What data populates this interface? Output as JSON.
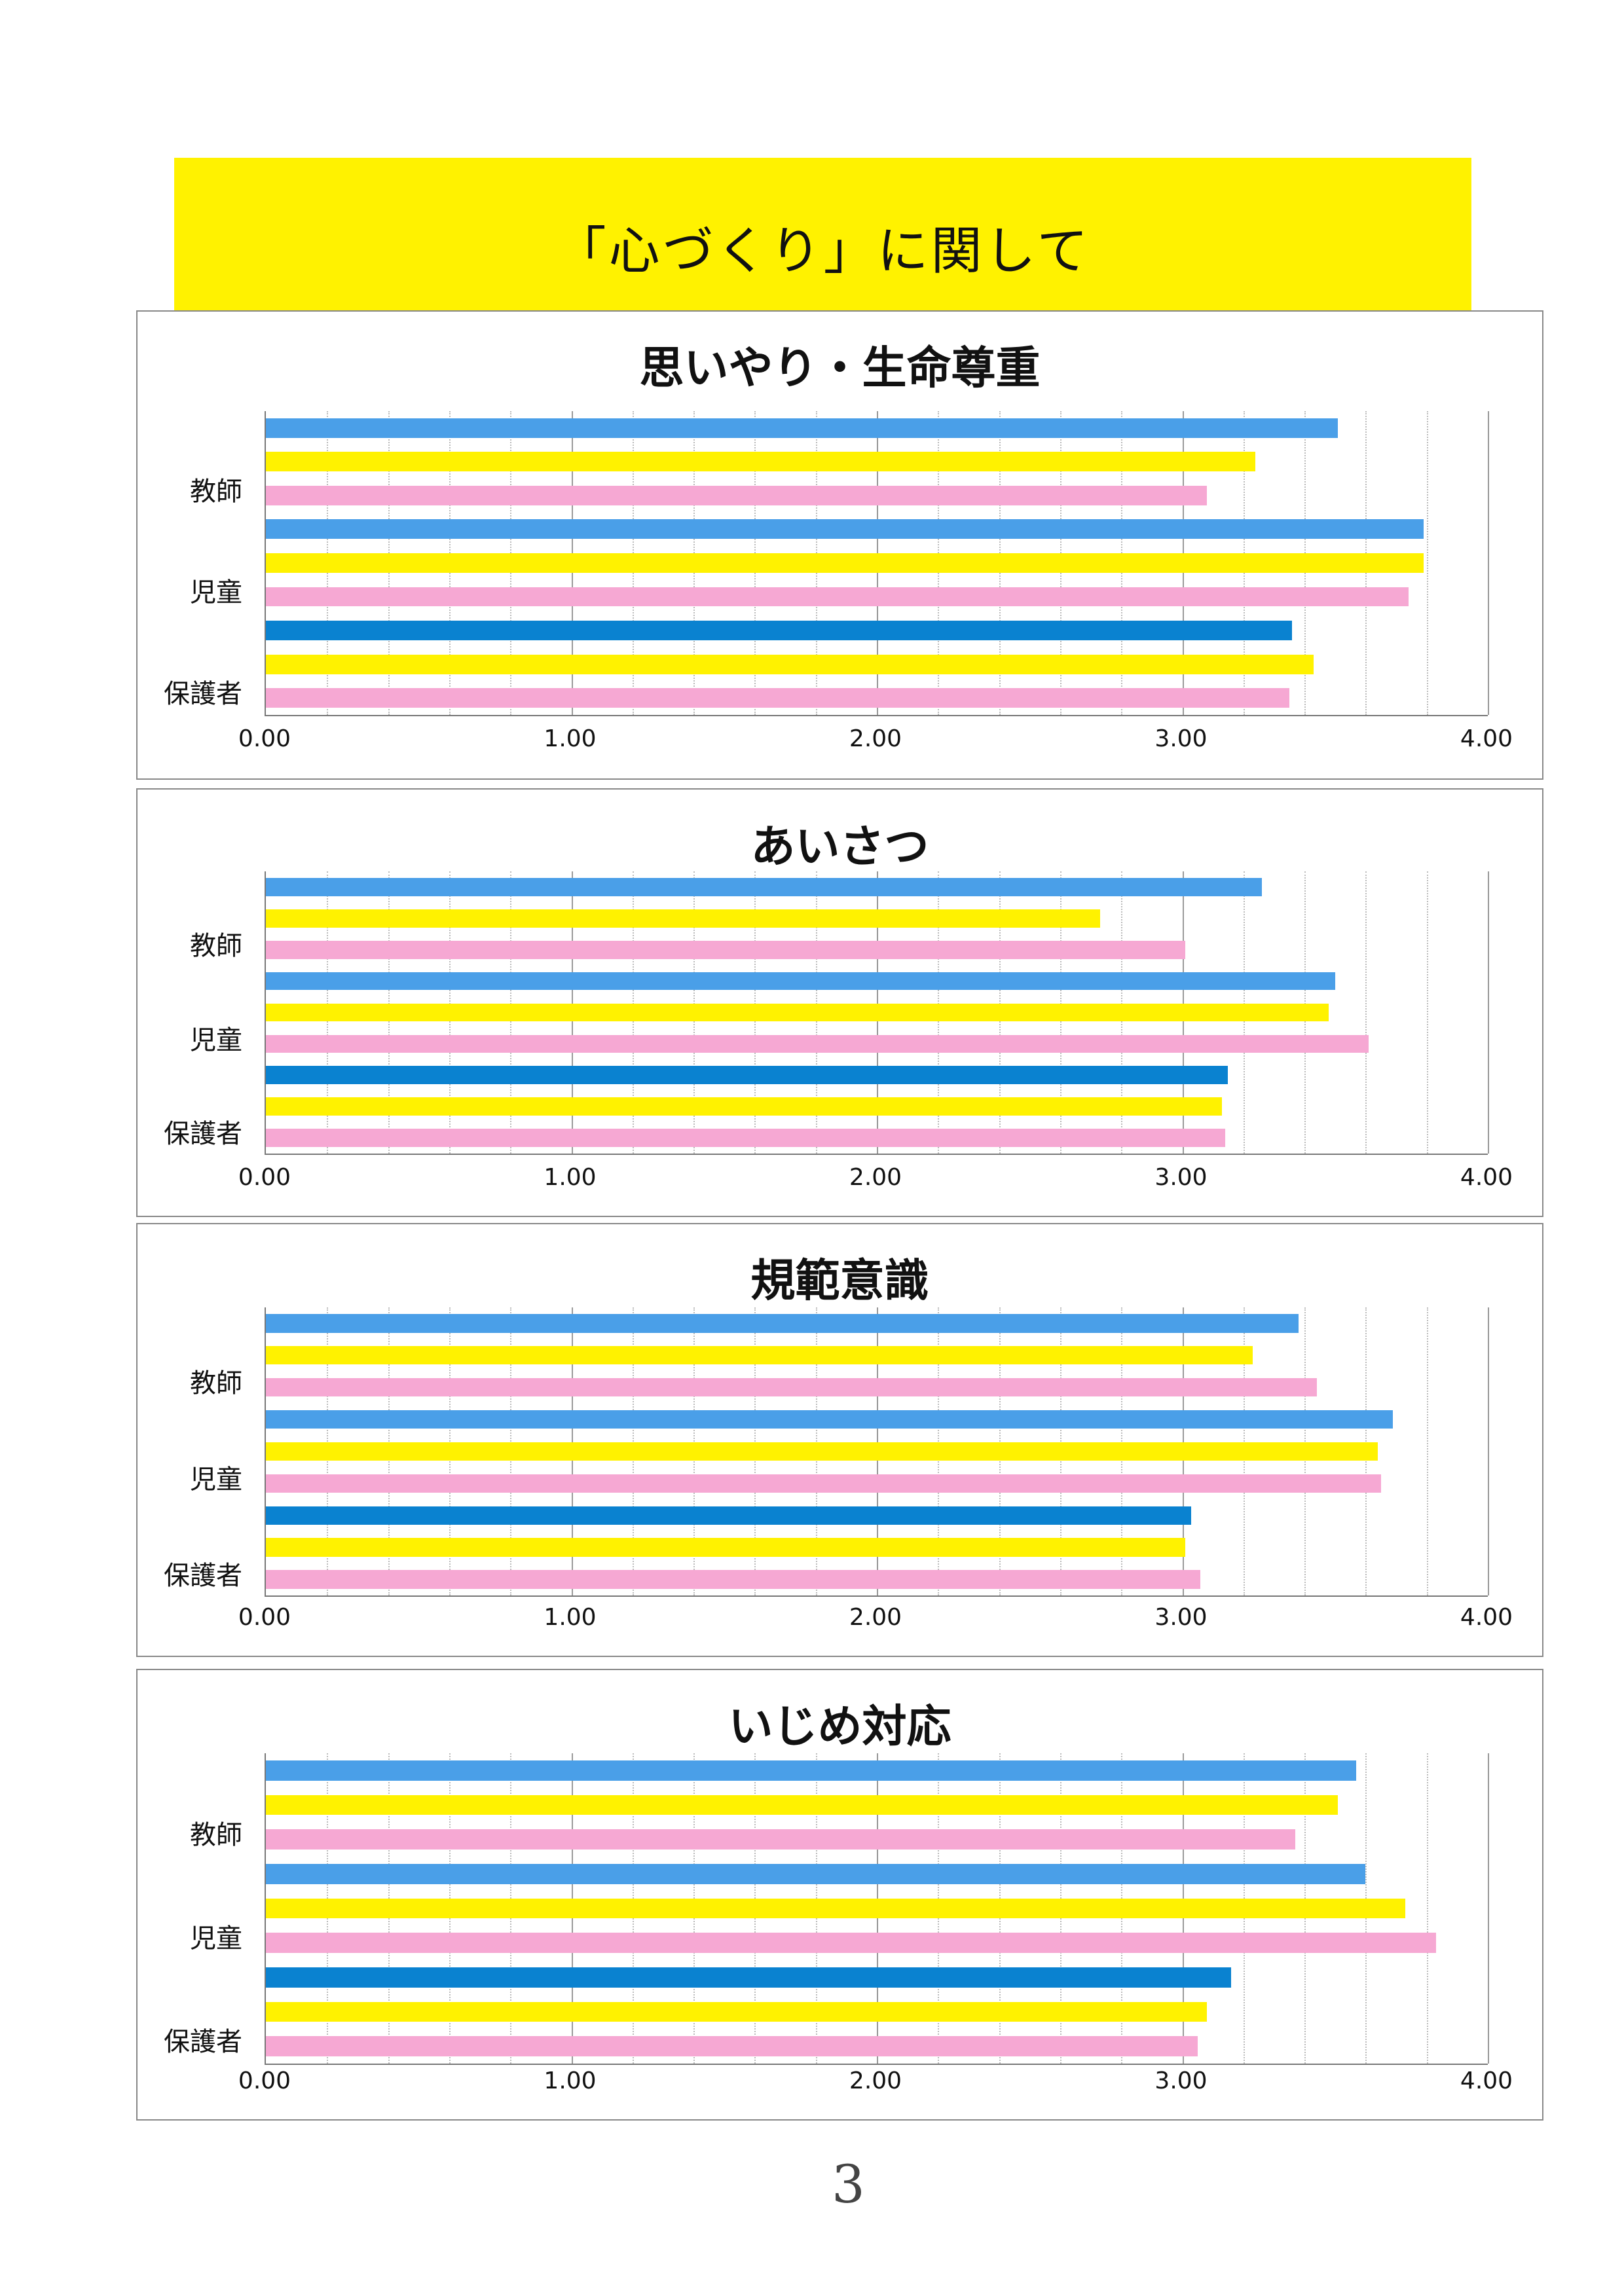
{
  "banner_title": "「心づくり」に関して",
  "page_number": "3",
  "colors": {
    "blue": "#4a9fe8",
    "dark_blue": "#0a82d0",
    "yellow": "#fff200",
    "pink": "#f6a8d3"
  },
  "chart_data": [
    {
      "type": "bar",
      "orientation": "horizontal",
      "title": "思いやり・生命尊重",
      "categories": [
        "教師",
        "児童",
        "保護者"
      ],
      "xlim": [
        0,
        4
      ],
      "xticks": [
        "0.00",
        "1.00",
        "2.00",
        "3.00",
        "4.00"
      ],
      "grid_step": 0.2,
      "values": [
        [
          3.51,
          3.24,
          3.08
        ],
        [
          3.79,
          3.79,
          3.74
        ],
        [
          3.36,
          3.43,
          3.35
        ]
      ]
    },
    {
      "type": "bar",
      "orientation": "horizontal",
      "title": "あいさつ",
      "categories": [
        "教師",
        "児童",
        "保護者"
      ],
      "xlim": [
        0,
        4
      ],
      "xticks": [
        "0.00",
        "1.00",
        "2.00",
        "3.00",
        "4.00"
      ],
      "grid_step": 0.2,
      "values": [
        [
          3.26,
          2.73,
          3.01
        ],
        [
          3.5,
          3.48,
          3.61
        ],
        [
          3.15,
          3.13,
          3.14
        ]
      ]
    },
    {
      "type": "bar",
      "orientation": "horizontal",
      "title": "規範意識",
      "categories": [
        "教師",
        "児童",
        "保護者"
      ],
      "xlim": [
        0,
        4
      ],
      "xticks": [
        "0.00",
        "1.00",
        "2.00",
        "3.00",
        "4.00"
      ],
      "grid_step": 0.2,
      "values": [
        [
          3.38,
          3.23,
          3.44
        ],
        [
          3.69,
          3.64,
          3.65
        ],
        [
          3.03,
          3.01,
          3.06
        ]
      ]
    },
    {
      "type": "bar",
      "orientation": "horizontal",
      "title": "いじめ対応",
      "categories": [
        "教師",
        "児童",
        "保護者"
      ],
      "xlim": [
        0,
        4
      ],
      "xticks": [
        "0.00",
        "1.00",
        "2.00",
        "3.00",
        "4.00"
      ],
      "grid_step": 0.2,
      "values": [
        [
          3.57,
          3.51,
          3.37
        ],
        [
          3.6,
          3.73,
          3.83
        ],
        [
          3.16,
          3.08,
          3.05
        ]
      ]
    }
  ]
}
